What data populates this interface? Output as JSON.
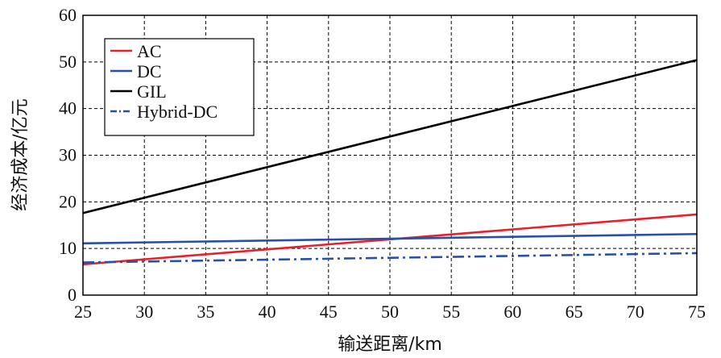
{
  "chart_data": {
    "type": "line",
    "title": "",
    "xlabel": "输送距离/km",
    "ylabel": "经济成本/亿元",
    "xlim": [
      25,
      75
    ],
    "ylim": [
      0,
      60
    ],
    "xticks": [
      25,
      30,
      35,
      40,
      45,
      50,
      55,
      60,
      65,
      70,
      75
    ],
    "yticks": [
      0,
      10,
      20,
      30,
      40,
      50,
      60
    ],
    "grid": true,
    "legend_position": "top-left",
    "series": [
      {
        "name": "AC",
        "color": "#e8202a",
        "dash": "solid",
        "x": [
          25,
          75
        ],
        "y": [
          6.6,
          17.3
        ]
      },
      {
        "name": "DC",
        "color": "#2a4fa8",
        "dash": "solid",
        "x": [
          25,
          75
        ],
        "y": [
          11.1,
          13.1
        ]
      },
      {
        "name": "GIL",
        "color": "#000000",
        "dash": "solid",
        "x": [
          25,
          75
        ],
        "y": [
          17.6,
          50.4
        ]
      },
      {
        "name": "Hybrid-DC",
        "color": "#2a4fa8",
        "dash": "dashdot",
        "x": [
          25,
          75
        ],
        "y": [
          7.0,
          9.0
        ]
      }
    ]
  }
}
